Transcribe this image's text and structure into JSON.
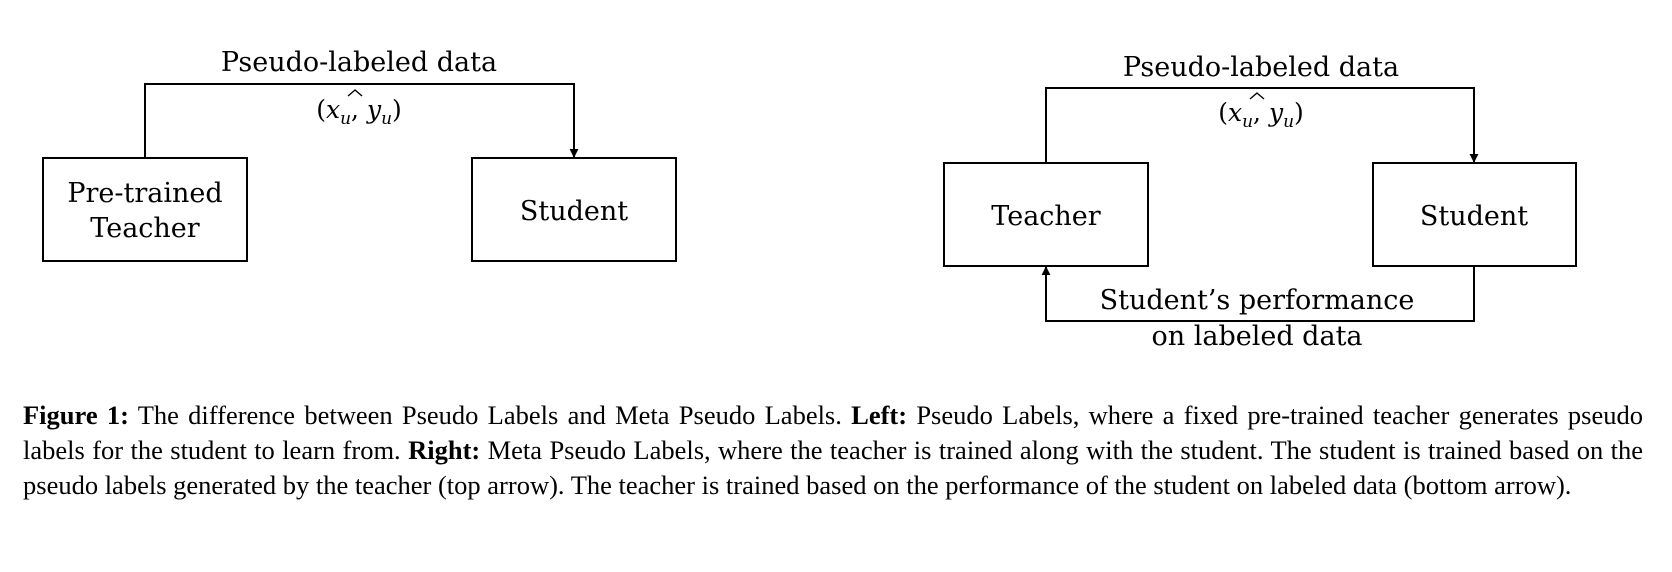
{
  "left_diagram": {
    "top_label": "Pseudo-labeled data",
    "teacher_line1": "Pre-trained",
    "teacher_line2": "Teacher",
    "student": "Student",
    "math": {
      "x": "x",
      "y": "y",
      "sub": "u"
    }
  },
  "right_diagram": {
    "top_label": "Pseudo-labeled data",
    "teacher": "Teacher",
    "student": "Student",
    "bottom_line1": "Student’s performance",
    "bottom_line2": "on labeled data",
    "math": {
      "x": "x",
      "y": "y",
      "sub": "u"
    }
  },
  "caption": {
    "figure_label": "Figure 1:",
    "intro": " The difference between Pseudo Labels and Meta Pseudo Labels. ",
    "left_label": "Left:",
    "left_text": " Pseudo Labels, where a fixed pre-trained teacher generates pseudo labels for the student to learn from. ",
    "right_label": "Right:",
    "right_text": " Meta Pseudo Labels, where the teacher is trained along with the student. The student is trained based on the pseudo labels generated by the teacher (top arrow). The teacher is trained based on the performance of the student on labeled data (bottom arrow)."
  }
}
